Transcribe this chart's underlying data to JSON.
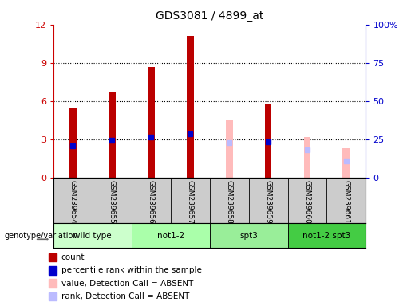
{
  "title": "GDS3081 / 4899_at",
  "samples": [
    "GSM239654",
    "GSM239655",
    "GSM239656",
    "GSM239657",
    "GSM239658",
    "GSM239659",
    "GSM239660",
    "GSM239661"
  ],
  "count_values": [
    5.5,
    6.7,
    8.7,
    11.1,
    null,
    5.8,
    null,
    null
  ],
  "rank_values_left": [
    2.5,
    2.9,
    3.2,
    3.4,
    null,
    2.8,
    null,
    null
  ],
  "absent_count": [
    null,
    null,
    null,
    null,
    4.5,
    null,
    3.2,
    2.3
  ],
  "absent_rank_left": [
    null,
    null,
    null,
    null,
    2.75,
    null,
    2.2,
    1.3
  ],
  "groups": [
    {
      "label": "wild type",
      "color": "#ccffcc",
      "samples": [
        0,
        1
      ]
    },
    {
      "label": "not1-2",
      "color": "#aaffaa",
      "samples": [
        2,
        3
      ]
    },
    {
      "label": "spt3",
      "color": "#99ee99",
      "samples": [
        4,
        5
      ]
    },
    {
      "label": "not1-2 spt3",
      "color": "#44cc44",
      "samples": [
        6,
        7
      ]
    }
  ],
  "ylim_left": [
    0,
    12
  ],
  "ylim_right": [
    0,
    100
  ],
  "yticks_left": [
    0,
    3,
    6,
    9,
    12
  ],
  "yticks_right": [
    0,
    25,
    50,
    75,
    100
  ],
  "count_color": "#bb0000",
  "rank_color": "#0000cc",
  "absent_count_color": "#ffbbbb",
  "absent_rank_color": "#bbbbff",
  "bg_color": "#ffffff",
  "left_axis_color": "#cc0000",
  "right_axis_color": "#0000cc",
  "legend_items": [
    {
      "label": "count",
      "color": "#bb0000"
    },
    {
      "label": "percentile rank within the sample",
      "color": "#0000cc"
    },
    {
      "label": "value, Detection Call = ABSENT",
      "color": "#ffbbbb"
    },
    {
      "label": "rank, Detection Call = ABSENT",
      "color": "#bbbbff"
    }
  ],
  "xlabel_bottom": "genotype/variation",
  "sample_bg_color": "#cccccc"
}
